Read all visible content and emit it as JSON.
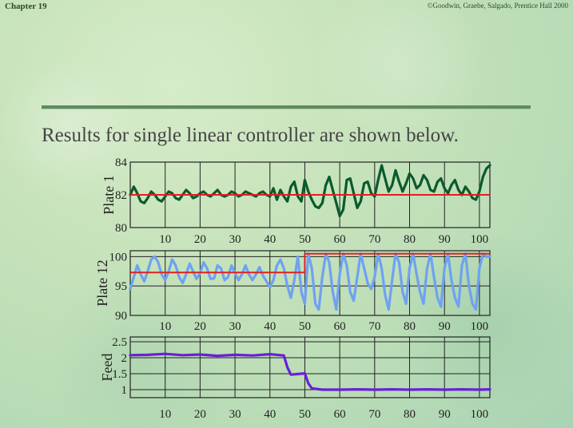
{
  "header": {
    "chapter": "Chapter 19",
    "copyright": "©Goodwin, Graebe, Salgado, Prentice Hall 2000"
  },
  "headline": "Results for single linear controller are shown below.",
  "colors": {
    "plate1_line": "#0b5a2e",
    "plate12_line": "#6fa1f2",
    "feed_line": "#6a1fd6",
    "setpoint": "#e02020",
    "grid": "#222222"
  },
  "chart_data": [
    {
      "type": "line",
      "ylabel": "Plate 1",
      "xlim": [
        0,
        103
      ],
      "ylim": [
        80,
        84
      ],
      "xticks": [
        10,
        20,
        30,
        40,
        50,
        60,
        70,
        80,
        90,
        100
      ],
      "yticks": [
        80,
        82,
        84
      ],
      "grid": true,
      "series": [
        {
          "role": "response",
          "x": [
            0,
            1,
            2,
            3,
            4,
            5,
            6,
            7,
            8,
            9,
            10,
            11,
            12,
            13,
            14,
            15,
            16,
            17,
            18,
            19,
            20,
            21,
            22,
            23,
            24,
            25,
            26,
            27,
            28,
            29,
            30,
            31,
            32,
            33,
            34,
            35,
            36,
            37,
            38,
            39,
            40,
            41,
            42,
            43,
            44,
            45,
            46,
            47,
            48,
            49,
            50,
            51,
            52,
            53,
            54,
            55,
            56,
            57,
            58,
            59,
            60,
            61,
            62,
            63,
            64,
            65,
            66,
            67,
            68,
            69,
            70,
            71,
            72,
            73,
            74,
            75,
            76,
            77,
            78,
            79,
            80,
            81,
            82,
            83,
            84,
            85,
            86,
            87,
            88,
            89,
            90,
            91,
            92,
            93,
            94,
            95,
            96,
            97,
            98,
            99,
            100,
            101,
            102,
            103
          ],
          "y": [
            82.0,
            82.5,
            82.1,
            81.6,
            81.5,
            81.8,
            82.2,
            82.0,
            81.7,
            81.6,
            81.9,
            82.2,
            82.1,
            81.8,
            81.7,
            82.0,
            82.3,
            82.1,
            81.8,
            81.9,
            82.1,
            82.2,
            82.0,
            81.9,
            82.1,
            82.3,
            82.0,
            81.9,
            82.0,
            82.2,
            82.1,
            81.9,
            82.0,
            82.2,
            82.1,
            82.0,
            81.9,
            82.1,
            82.2,
            82.0,
            81.9,
            82.4,
            81.7,
            82.3,
            81.9,
            81.6,
            82.5,
            82.8,
            81.9,
            81.6,
            82.9,
            82.2,
            81.7,
            81.3,
            81.2,
            81.5,
            82.6,
            83.1,
            82.3,
            81.5,
            80.7,
            81.1,
            82.9,
            83.0,
            82.1,
            81.2,
            81.6,
            82.7,
            82.8,
            82.1,
            81.9,
            82.9,
            83.8,
            83.0,
            82.2,
            82.6,
            83.5,
            82.8,
            82.2,
            82.7,
            83.3,
            83.0,
            82.4,
            82.6,
            83.2,
            82.9,
            82.3,
            82.2,
            82.8,
            83.0,
            82.4,
            82.1,
            82.6,
            82.9,
            82.3,
            82.0,
            82.5,
            82.2,
            81.8,
            81.7,
            82.2,
            83.1,
            83.6,
            83.8
          ]
        },
        {
          "role": "setpoint",
          "x": [
            0,
            103
          ],
          "y": [
            82.0,
            82.0
          ]
        }
      ]
    },
    {
      "type": "line",
      "ylabel": "Plate 12",
      "xlim": [
        0,
        103
      ],
      "ylim": [
        90,
        101
      ],
      "xticks": [
        10,
        20,
        30,
        40,
        50,
        60,
        70,
        80,
        90,
        100
      ],
      "yticks": [
        90,
        95,
        100
      ],
      "grid": true,
      "series": [
        {
          "role": "response",
          "x": [
            0,
            1,
            2,
            3,
            4,
            5,
            6,
            7,
            8,
            9,
            10,
            11,
            12,
            13,
            14,
            15,
            16,
            17,
            18,
            19,
            20,
            21,
            22,
            23,
            24,
            25,
            26,
            27,
            28,
            29,
            30,
            31,
            32,
            33,
            34,
            35,
            36,
            37,
            38,
            39,
            40,
            41,
            42,
            43,
            44,
            45,
            46,
            47,
            48,
            49,
            50,
            51,
            52,
            53,
            54,
            55,
            56,
            57,
            58,
            59,
            60,
            61,
            62,
            63,
            64,
            65,
            66,
            67,
            68,
            69,
            70,
            71,
            72,
            73,
            74,
            75,
            76,
            77,
            78,
            79,
            80,
            81,
            82,
            83,
            84,
            85,
            86,
            87,
            88,
            89,
            90,
            91,
            92,
            93,
            94,
            95,
            96,
            97,
            98,
            99,
            100,
            101,
            102,
            103
          ],
          "y": [
            94.5,
            96.5,
            98.5,
            97.0,
            95.8,
            97.5,
            99.5,
            100.0,
            99.0,
            97.0,
            96.0,
            97.5,
            99.5,
            98.5,
            96.5,
            95.5,
            97.0,
            98.8,
            97.5,
            96.2,
            97.2,
            99.0,
            98.0,
            96.2,
            96.3,
            98.5,
            98.0,
            96.0,
            96.5,
            98.5,
            97.2,
            96.0,
            97.0,
            98.5,
            97.0,
            96.0,
            97.0,
            98.2,
            96.8,
            95.8,
            94.8,
            96.0,
            98.5,
            99.5,
            98.0,
            95.0,
            93.0,
            96.0,
            100.0,
            94.0,
            92.0,
            100.5,
            98.0,
            92.0,
            91.0,
            96.5,
            100.5,
            99.0,
            94.0,
            91.0,
            97.0,
            100.5,
            98.5,
            94.0,
            92.5,
            96.5,
            100.5,
            98.0,
            95.5,
            94.5,
            96.5,
            100.5,
            98.0,
            93.5,
            91.0,
            96.0,
            100.5,
            99.0,
            94.0,
            92.0,
            98.0,
            100.5,
            97.0,
            94.0,
            92.0,
            98.0,
            100.5,
            96.5,
            93.0,
            91.5,
            98.0,
            100.5,
            96.0,
            93.0,
            91.5,
            98.5,
            100.5,
            95.0,
            92.0,
            91.0,
            98.0,
            100.5,
            100.0,
            100.0
          ]
        },
        {
          "role": "setpoint",
          "x": [
            0,
            50,
            50,
            103
          ],
          "y": [
            97.3,
            97.3,
            100.5,
            100.5
          ]
        }
      ]
    },
    {
      "type": "line",
      "ylabel": "Feed",
      "xlim": [
        0,
        103
      ],
      "ylim": [
        0.75,
        2.65
      ],
      "xticks": [
        10,
        20,
        30,
        40,
        50,
        60,
        70,
        80,
        90,
        100
      ],
      "yticks": [
        1,
        1.5,
        2,
        2.5
      ],
      "grid": true,
      "series": [
        {
          "role": "response",
          "x": [
            0,
            5,
            10,
            15,
            20,
            25,
            30,
            35,
            40,
            44,
            45,
            46,
            50,
            51,
            52,
            55,
            60,
            65,
            70,
            75,
            80,
            85,
            90,
            95,
            100,
            103
          ],
          "y": [
            2.08,
            2.09,
            2.12,
            2.08,
            2.1,
            2.06,
            2.09,
            2.07,
            2.11,
            2.07,
            1.7,
            1.47,
            1.51,
            1.2,
            1.04,
            1.0,
            1.0,
            1.01,
            1.0,
            1.01,
            1.0,
            1.01,
            1.0,
            1.01,
            1.0,
            1.01
          ]
        }
      ]
    }
  ]
}
